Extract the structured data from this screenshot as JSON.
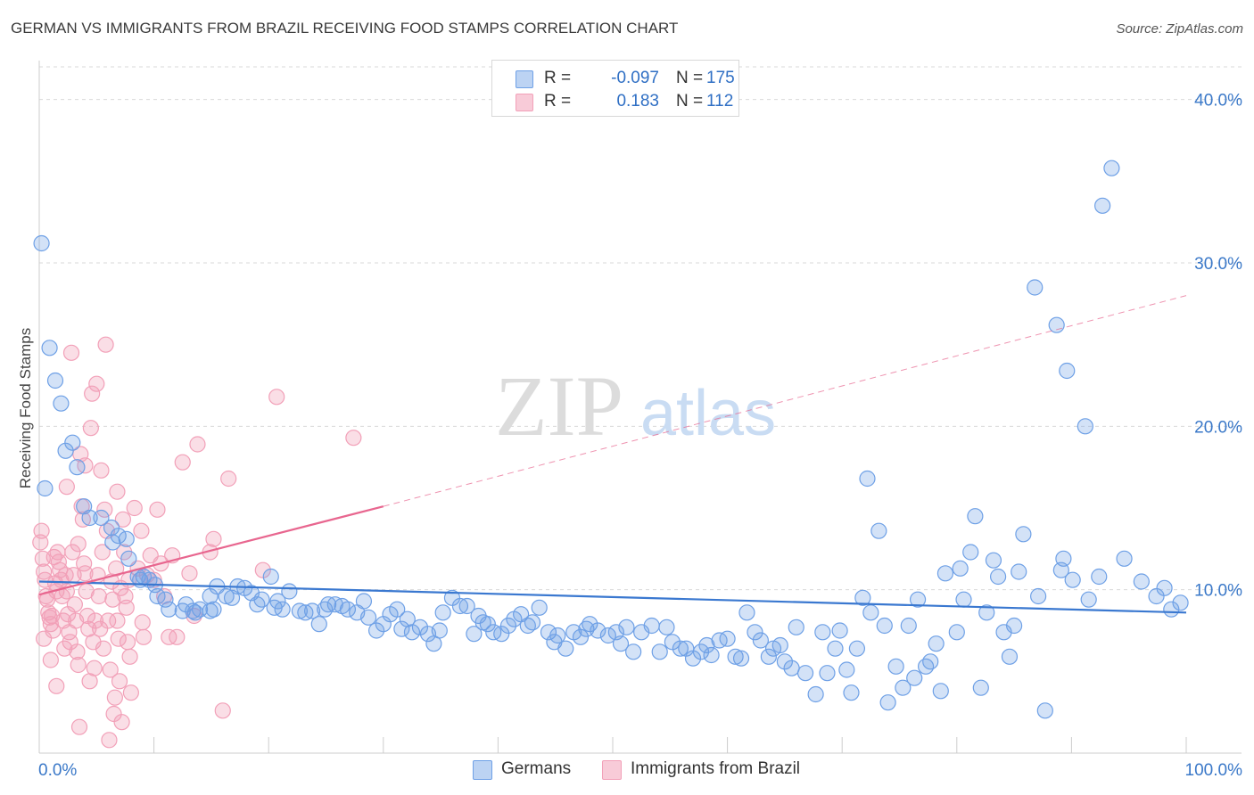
{
  "title": "GERMAN VS IMMIGRANTS FROM BRAZIL RECEIVING FOOD STAMPS CORRELATION CHART",
  "source": "Source: ZipAtlas.com",
  "watermark": {
    "zip": "ZIP",
    "atlas": "atlas"
  },
  "legend": {
    "r_label": "R =",
    "n_label": "N =",
    "rows": [
      {
        "r": "-0.097",
        "n": "175",
        "color": "#6ea0e6"
      },
      {
        "r": "0.183",
        "n": "112",
        "color": "#f2a0b8"
      }
    ]
  },
  "bottom_legend": [
    {
      "label": "Germans",
      "color": "#6ea0e6"
    },
    {
      "label": "Immigrants from Brazil",
      "color": "#f2a0b8"
    }
  ],
  "colors": {
    "blue": "#3a78d0",
    "pink": "#e8668f",
    "grid": "#d9d9d9",
    "tick_text": "#3a78c8"
  },
  "chart_data": {
    "type": "scatter",
    "title": "GERMAN VS IMMIGRANTS FROM BRAZIL RECEIVING FOOD STAMPS CORRELATION CHART",
    "xlabel": "",
    "ylabel": "Receiving Food Stamps",
    "xlim": [
      0,
      100
    ],
    "ylim": [
      0,
      42
    ],
    "x_tick_labels": [
      {
        "value": 0,
        "label": "0.0%"
      },
      {
        "value": 100,
        "label": "100.0%"
      }
    ],
    "y_ticks": [
      {
        "value": 10,
        "label": "10.0%"
      },
      {
        "value": 20,
        "label": "20.0%"
      },
      {
        "value": 30,
        "label": "30.0%"
      },
      {
        "value": 40,
        "label": "40.0%"
      }
    ],
    "grid": true,
    "legend_position": "top-center",
    "series": [
      {
        "name": "Germans",
        "color": "#6ea0e6",
        "trend": {
          "x": [
            0,
            100
          ],
          "y": [
            10.5,
            8.6
          ]
        },
        "points": [
          [
            0.2,
            31.2
          ],
          [
            0.9,
            24.8
          ],
          [
            1.4,
            22.8
          ],
          [
            1.9,
            21.4
          ],
          [
            2.3,
            18.5
          ],
          [
            2.9,
            19.0
          ],
          [
            3.3,
            17.5
          ],
          [
            3.9,
            15.1
          ],
          [
            4.4,
            14.4
          ],
          [
            5.4,
            14.4
          ],
          [
            6.3,
            13.8
          ],
          [
            6.9,
            13.3
          ],
          [
            6.4,
            12.9
          ],
          [
            7.6,
            13.1
          ],
          [
            7.8,
            11.9
          ],
          [
            8.6,
            10.8
          ],
          [
            9.1,
            10.8
          ],
          [
            8.8,
            10.6
          ],
          [
            9.6,
            10.6
          ],
          [
            10.1,
            10.3
          ],
          [
            10.3,
            9.6
          ],
          [
            11.0,
            9.4
          ],
          [
            11.3,
            8.8
          ],
          [
            12.5,
            8.7
          ],
          [
            12.8,
            9.1
          ],
          [
            13.4,
            8.7
          ],
          [
            14.0,
            8.8
          ],
          [
            14.9,
            8.7
          ],
          [
            15.2,
            8.8
          ],
          [
            13.6,
            8.6
          ],
          [
            15.5,
            10.2
          ],
          [
            14.9,
            9.6
          ],
          [
            16.3,
            9.6
          ],
          [
            16.8,
            9.5
          ],
          [
            17.3,
            10.2
          ],
          [
            17.9,
            10.1
          ],
          [
            18.5,
            9.8
          ],
          [
            19.0,
            9.1
          ],
          [
            19.4,
            9.4
          ],
          [
            20.2,
            10.8
          ],
          [
            20.5,
            8.9
          ],
          [
            20.8,
            9.3
          ],
          [
            21.2,
            8.8
          ],
          [
            21.8,
            9.9
          ],
          [
            22.7,
            8.7
          ],
          [
            23.2,
            8.6
          ],
          [
            23.8,
            8.7
          ],
          [
            24.4,
            7.9
          ],
          [
            24.9,
            8.8
          ],
          [
            25.2,
            9.1
          ],
          [
            25.8,
            9.1
          ],
          [
            26.4,
            9.0
          ],
          [
            26.9,
            8.8
          ],
          [
            27.7,
            8.6
          ],
          [
            28.3,
            9.3
          ],
          [
            28.7,
            8.3
          ],
          [
            29.4,
            7.5
          ],
          [
            30.0,
            7.9
          ],
          [
            30.6,
            8.5
          ],
          [
            31.2,
            8.8
          ],
          [
            31.6,
            7.6
          ],
          [
            32.1,
            8.2
          ],
          [
            32.5,
            7.4
          ],
          [
            33.2,
            7.7
          ],
          [
            33.9,
            7.3
          ],
          [
            34.4,
            6.7
          ],
          [
            34.9,
            7.5
          ],
          [
            35.2,
            8.6
          ],
          [
            36.0,
            9.5
          ],
          [
            36.7,
            9.0
          ],
          [
            37.3,
            9.0
          ],
          [
            37.9,
            7.3
          ],
          [
            38.3,
            8.4
          ],
          [
            38.7,
            8.0
          ],
          [
            39.1,
            7.9
          ],
          [
            39.6,
            7.4
          ],
          [
            40.3,
            7.3
          ],
          [
            40.9,
            7.8
          ],
          [
            41.4,
            8.2
          ],
          [
            42.0,
            8.5
          ],
          [
            42.6,
            7.8
          ],
          [
            43.0,
            8.0
          ],
          [
            43.6,
            8.9
          ],
          [
            44.4,
            7.4
          ],
          [
            44.9,
            6.8
          ],
          [
            45.2,
            7.2
          ],
          [
            45.9,
            6.4
          ],
          [
            46.6,
            7.4
          ],
          [
            47.2,
            7.1
          ],
          [
            47.7,
            7.6
          ],
          [
            48.0,
            7.9
          ],
          [
            48.7,
            7.5
          ],
          [
            49.6,
            7.2
          ],
          [
            50.3,
            7.4
          ],
          [
            50.7,
            6.7
          ],
          [
            51.2,
            7.7
          ],
          [
            51.8,
            6.2
          ],
          [
            52.5,
            7.4
          ],
          [
            53.4,
            7.8
          ],
          [
            54.1,
            6.2
          ],
          [
            54.7,
            7.7
          ],
          [
            55.2,
            6.8
          ],
          [
            55.9,
            6.4
          ],
          [
            56.4,
            6.4
          ],
          [
            57.0,
            5.8
          ],
          [
            57.7,
            6.2
          ],
          [
            58.2,
            6.6
          ],
          [
            58.6,
            6.0
          ],
          [
            59.3,
            6.9
          ],
          [
            60.0,
            7.0
          ],
          [
            60.7,
            5.9
          ],
          [
            61.2,
            5.8
          ],
          [
            61.7,
            8.6
          ],
          [
            62.4,
            7.4
          ],
          [
            62.9,
            6.9
          ],
          [
            63.6,
            5.9
          ],
          [
            64.0,
            6.4
          ],
          [
            64.6,
            6.6
          ],
          [
            65.0,
            5.6
          ],
          [
            65.6,
            5.2
          ],
          [
            66.0,
            7.7
          ],
          [
            66.8,
            4.9
          ],
          [
            67.7,
            3.6
          ],
          [
            68.3,
            7.4
          ],
          [
            68.7,
            4.9
          ],
          [
            69.4,
            6.4
          ],
          [
            69.8,
            7.5
          ],
          [
            70.4,
            5.1
          ],
          [
            70.8,
            3.7
          ],
          [
            71.3,
            6.4
          ],
          [
            71.8,
            9.5
          ],
          [
            72.2,
            16.8
          ],
          [
            72.5,
            8.6
          ],
          [
            73.2,
            13.6
          ],
          [
            73.7,
            7.8
          ],
          [
            74.0,
            3.1
          ],
          [
            74.7,
            5.3
          ],
          [
            75.3,
            4.0
          ],
          [
            75.8,
            7.8
          ],
          [
            76.3,
            4.6
          ],
          [
            76.6,
            9.4
          ],
          [
            77.3,
            5.3
          ],
          [
            77.7,
            5.6
          ],
          [
            78.2,
            6.7
          ],
          [
            78.6,
            3.8
          ],
          [
            79.0,
            11.0
          ],
          [
            80.0,
            7.4
          ],
          [
            80.3,
            11.3
          ],
          [
            80.6,
            9.4
          ],
          [
            81.2,
            12.3
          ],
          [
            81.6,
            14.5
          ],
          [
            82.1,
            4.0
          ],
          [
            82.6,
            8.6
          ],
          [
            83.2,
            11.8
          ],
          [
            83.6,
            10.8
          ],
          [
            84.1,
            7.4
          ],
          [
            84.6,
            5.9
          ],
          [
            85.0,
            7.8
          ],
          [
            85.4,
            11.1
          ],
          [
            85.8,
            13.4
          ],
          [
            86.8,
            28.5
          ],
          [
            87.1,
            9.6
          ],
          [
            87.7,
            2.6
          ],
          [
            88.7,
            26.2
          ],
          [
            89.1,
            11.2
          ],
          [
            89.3,
            11.9
          ],
          [
            89.6,
            23.4
          ],
          [
            90.1,
            10.6
          ],
          [
            91.2,
            20.0
          ],
          [
            91.5,
            9.4
          ],
          [
            92.4,
            10.8
          ],
          [
            92.7,
            33.5
          ],
          [
            93.5,
            35.8
          ],
          [
            94.6,
            11.9
          ],
          [
            96.1,
            10.5
          ],
          [
            97.4,
            9.6
          ],
          [
            98.1,
            10.1
          ],
          [
            98.7,
            8.8
          ],
          [
            99.5,
            9.2
          ],
          [
            0.5,
            16.2
          ]
        ]
      },
      {
        "name": "Immigrants from Brazil",
        "color": "#f2a0b8",
        "trend": {
          "x": [
            0,
            30
          ],
          "y": [
            9.7,
            15.1
          ]
        },
        "trend_extended": {
          "x": [
            30,
            100
          ],
          "y": [
            15.1,
            28.0
          ]
        },
        "points": [
          [
            0.1,
            12.9
          ],
          [
            0.3,
            11.9
          ],
          [
            0.4,
            11.1
          ],
          [
            0.5,
            10.6
          ],
          [
            0.6,
            9.6
          ],
          [
            0.7,
            9.4
          ],
          [
            0.8,
            8.6
          ],
          [
            0.9,
            8.3
          ],
          [
            1.0,
            7.9
          ],
          [
            1.1,
            8.4
          ],
          [
            1.2,
            7.5
          ],
          [
            1.3,
            12.0
          ],
          [
            1.4,
            10.4
          ],
          [
            1.5,
            9.9
          ],
          [
            1.6,
            12.3
          ],
          [
            1.7,
            11.7
          ],
          [
            1.8,
            11.2
          ],
          [
            1.9,
            10.6
          ],
          [
            2.0,
            9.6
          ],
          [
            2.1,
            8.1
          ],
          [
            2.2,
            6.4
          ],
          [
            2.3,
            10.9
          ],
          [
            2.4,
            9.9
          ],
          [
            2.5,
            8.5
          ],
          [
            2.6,
            7.4
          ],
          [
            2.7,
            6.8
          ],
          [
            2.8,
            24.5
          ],
          [
            2.9,
            12.3
          ],
          [
            3.0,
            10.9
          ],
          [
            3.1,
            9.1
          ],
          [
            3.2,
            8.1
          ],
          [
            3.3,
            6.2
          ],
          [
            3.4,
            5.4
          ],
          [
            3.5,
            1.6
          ],
          [
            3.6,
            18.3
          ],
          [
            3.7,
            15.1
          ],
          [
            3.8,
            14.3
          ],
          [
            3.9,
            11.6
          ],
          [
            4.0,
            11.0
          ],
          [
            4.1,
            9.9
          ],
          [
            4.2,
            8.4
          ],
          [
            4.3,
            7.6
          ],
          [
            4.4,
            4.4
          ],
          [
            4.5,
            19.9
          ],
          [
            4.6,
            22.0
          ],
          [
            4.7,
            6.8
          ],
          [
            4.8,
            5.2
          ],
          [
            4.9,
            8.1
          ],
          [
            5.0,
            22.6
          ],
          [
            5.1,
            10.9
          ],
          [
            5.2,
            9.6
          ],
          [
            5.3,
            7.6
          ],
          [
            5.4,
            17.3
          ],
          [
            5.5,
            12.3
          ],
          [
            5.6,
            6.4
          ],
          [
            5.7,
            14.9
          ],
          [
            5.8,
            25.0
          ],
          [
            5.9,
            13.6
          ],
          [
            6.0,
            8.1
          ],
          [
            6.1,
            0.8
          ],
          [
            6.2,
            5.1
          ],
          [
            6.3,
            10.5
          ],
          [
            6.4,
            9.4
          ],
          [
            6.5,
            2.4
          ],
          [
            6.6,
            3.4
          ],
          [
            6.7,
            11.3
          ],
          [
            6.8,
            8.1
          ],
          [
            6.9,
            7.0
          ],
          [
            7.0,
            4.4
          ],
          [
            7.1,
            10.1
          ],
          [
            7.2,
            1.9
          ],
          [
            7.3,
            14.3
          ],
          [
            7.4,
            12.3
          ],
          [
            7.5,
            9.6
          ],
          [
            7.6,
            8.9
          ],
          [
            7.7,
            6.8
          ],
          [
            7.8,
            10.6
          ],
          [
            7.9,
            5.9
          ],
          [
            8.0,
            3.7
          ],
          [
            8.3,
            15.0
          ],
          [
            8.6,
            11.3
          ],
          [
            8.9,
            13.6
          ],
          [
            9.1,
            7.1
          ],
          [
            9.4,
            10.9
          ],
          [
            9.7,
            12.1
          ],
          [
            10.0,
            10.6
          ],
          [
            10.3,
            14.9
          ],
          [
            10.6,
            11.6
          ],
          [
            10.9,
            9.6
          ],
          [
            11.3,
            7.1
          ],
          [
            11.6,
            12.1
          ],
          [
            12.0,
            7.1
          ],
          [
            12.5,
            17.8
          ],
          [
            13.1,
            11.0
          ],
          [
            13.5,
            8.4
          ],
          [
            13.8,
            18.9
          ],
          [
            14.9,
            12.3
          ],
          [
            15.2,
            13.1
          ],
          [
            16.0,
            2.6
          ],
          [
            16.5,
            16.8
          ],
          [
            19.5,
            11.2
          ],
          [
            20.7,
            21.8
          ],
          [
            27.4,
            19.3
          ],
          [
            0.2,
            13.6
          ],
          [
            0.4,
            7.0
          ],
          [
            1.0,
            5.7
          ],
          [
            1.5,
            4.1
          ],
          [
            2.4,
            16.3
          ],
          [
            3.4,
            12.8
          ],
          [
            4.0,
            17.6
          ],
          [
            6.8,
            16.0
          ],
          [
            9.0,
            8.0
          ]
        ]
      }
    ]
  }
}
